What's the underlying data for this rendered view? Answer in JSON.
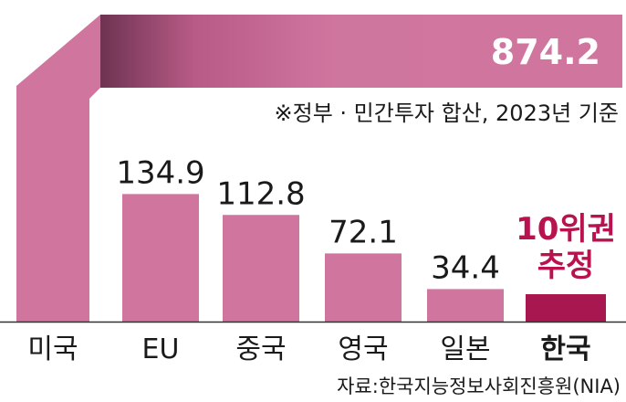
{
  "chart_data": {
    "type": "bar",
    "title": "",
    "xlabel": "",
    "ylabel": "",
    "categories": [
      "미국",
      "EU",
      "중국",
      "영국",
      "일본",
      "한국"
    ],
    "values": [
      874.2,
      134.9,
      112.8,
      72.1,
      34.4,
      null
    ],
    "value_labels": [
      "874.2",
      "134.9",
      "112.8",
      "72.1",
      "34.4",
      "10위권\n추정"
    ],
    "highlight_category": "한국",
    "highlight_label_lines": [
      "10위권",
      "추정"
    ],
    "note": "※정부 · 민간투자 합산, 2023년 기준",
    "source": "자료:한국지능정보사회진흥원(NIA)",
    "broken_axis": true,
    "colors": {
      "bar": "#d0769e",
      "bar_dark": "#6e3351",
      "highlight": "#a8174f",
      "highlight_text": "#b8124f",
      "text": "#1a1a1a",
      "value_text_on_bar": "#ffffff",
      "baseline": "#333333"
    }
  }
}
